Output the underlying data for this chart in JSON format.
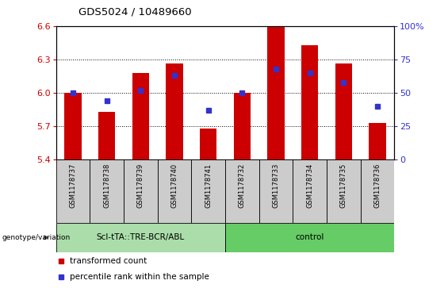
{
  "title": "GDS5024 / 10489660",
  "samples": [
    "GSM1178737",
    "GSM1178738",
    "GSM1178739",
    "GSM1178740",
    "GSM1178741",
    "GSM1178732",
    "GSM1178733",
    "GSM1178734",
    "GSM1178735",
    "GSM1178736"
  ],
  "red_values": [
    6.0,
    5.83,
    6.18,
    6.265,
    5.68,
    6.0,
    6.59,
    6.43,
    6.265,
    5.73
  ],
  "blue_values": [
    50,
    44,
    52,
    63,
    37,
    50,
    68,
    65,
    58,
    40
  ],
  "ylim": [
    5.4,
    6.6
  ],
  "y2lim": [
    0,
    100
  ],
  "yticks": [
    5.4,
    5.7,
    6.0,
    6.3,
    6.6
  ],
  "y2ticks": [
    0,
    25,
    50,
    75,
    100
  ],
  "red_color": "#CC0000",
  "blue_color": "#3333CC",
  "groups": [
    {
      "label": "ScI-tTA::TRE-BCR/ABL",
      "start": 0,
      "end": 5,
      "color": "#aaddaa"
    },
    {
      "label": "control",
      "start": 5,
      "end": 10,
      "color": "#66cc66"
    }
  ],
  "group_bg_color": "#cccccc",
  "plot_bg_color": "#ffffff",
  "legend_items": [
    {
      "label": "transformed count",
      "color": "#CC0000"
    },
    {
      "label": "percentile rank within the sample",
      "color": "#3333CC"
    }
  ]
}
